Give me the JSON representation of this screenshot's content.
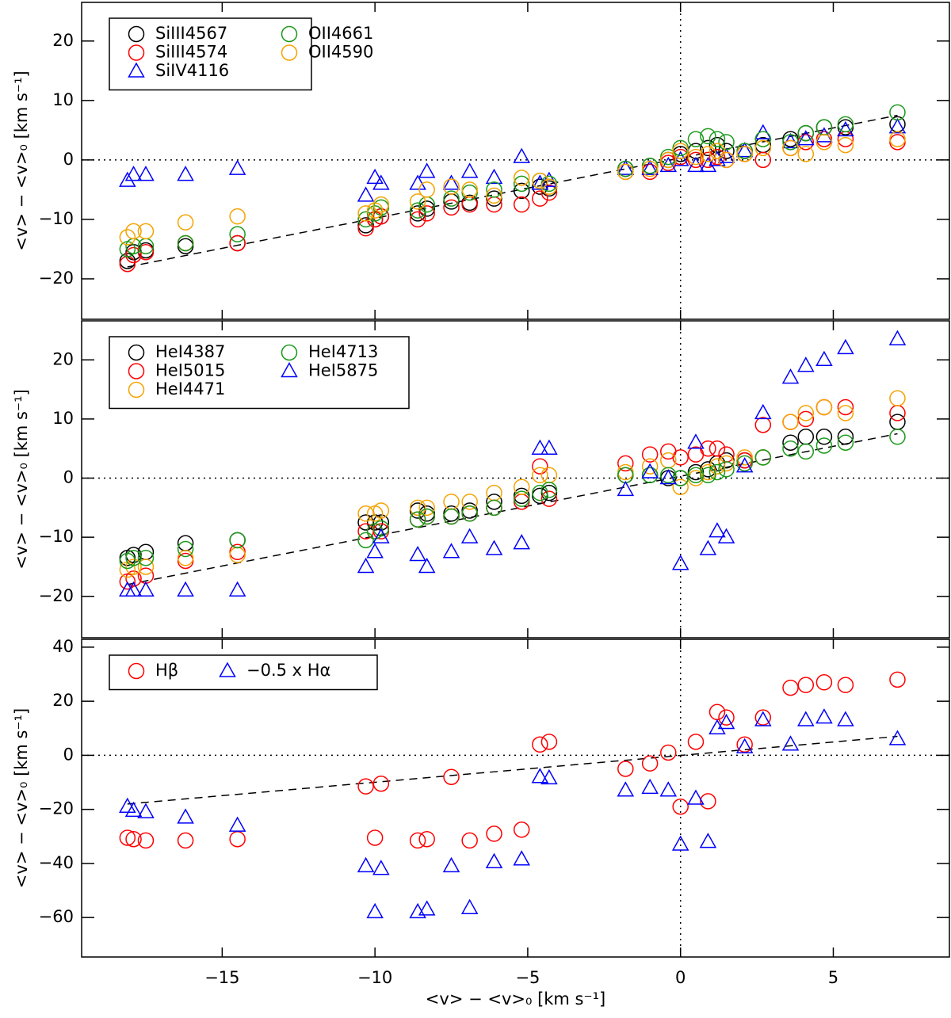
{
  "chart_data": [
    {
      "type": "scatter",
      "x": [
        -18.1,
        -17.9,
        -17.5,
        -16.2,
        -14.5,
        -10.3,
        -10.0,
        -9.8,
        -8.6,
        -8.3,
        -7.5,
        -6.9,
        -6.1,
        -5.2,
        -4.6,
        -4.3,
        -1.8,
        -1.0,
        -0.4,
        0.0,
        0.5,
        0.9,
        1.2,
        1.5,
        2.1,
        2.7,
        3.6,
        4.1,
        4.7,
        5.4,
        7.1
      ],
      "series": [
        {
          "name": "SiIII4567",
          "color": "#000000",
          "marker": "circle",
          "values": [
            -17,
            -15.5,
            -15.2,
            -14.5,
            -14,
            -11,
            -10,
            -9.5,
            -9,
            -8.2,
            -7,
            -7.2,
            -6.5,
            -5.2,
            -4.5,
            -4.8,
            -1.5,
            -1,
            0,
            1,
            1.5,
            2,
            2.5,
            1.5,
            1.5,
            2.5,
            3.5,
            4.5,
            5.5,
            5.5,
            6
          ]
        },
        {
          "name": "SiIII4574",
          "color": "#ff0000",
          "marker": "circle",
          "values": [
            -17.5,
            -16,
            -15.5,
            -14,
            -14,
            -11.5,
            -10,
            -9.5,
            -10,
            -9,
            -8,
            -7.5,
            -7.5,
            -7.5,
            -6.5,
            -5.5,
            -2,
            -2,
            -0.5,
            0.5,
            0,
            0,
            0.5,
            0,
            1,
            0,
            2,
            3,
            3.5,
            3.5,
            3
          ]
        },
        {
          "name": "SiIV4116",
          "color": "#0000ff",
          "marker": "triangle",
          "values": [
            -3.5,
            -2.5,
            -2.5,
            -2.5,
            -1.5,
            -6,
            -3,
            -4,
            -4,
            -2,
            -4,
            -2,
            -3,
            0.5,
            -4,
            -3.5,
            -1.5,
            -1.5,
            -1,
            0,
            -1,
            -1,
            0,
            0.5,
            1.5,
            4.5,
            3,
            3.5,
            4,
            5,
            5.5
          ]
        },
        {
          "name": "OII4661",
          "color": "#1a9a1a",
          "marker": "circle",
          "values": [
            -15,
            -14.5,
            -14.5,
            -14,
            -12.5,
            -10,
            -9,
            -8,
            -8.5,
            -7.5,
            -6.5,
            -5.5,
            -5,
            -4,
            -3.5,
            -4,
            -1.5,
            -1,
            0.5,
            2,
            3.5,
            4,
            3.5,
            3,
            1.5,
            3.5,
            3,
            4.5,
            5.5,
            6,
            8
          ]
        },
        {
          "name": "OII4590",
          "color": "#f5a300",
          "marker": "circle",
          "values": [
            -13,
            -12,
            -12,
            -10.5,
            -9.5,
            -9,
            -8.5,
            -7.5,
            -7,
            -5,
            -4.5,
            -5,
            -6,
            -3,
            -3.5,
            -4.5,
            -2,
            -1.5,
            0,
            1.5,
            0.5,
            1,
            1.5,
            0,
            1,
            2,
            2,
            1,
            3,
            2.5,
            3.5
          ]
        }
      ],
      "reference_line": {
        "x": [
          -18.1,
          7.1
        ],
        "y": [
          -18,
          7.5
        ]
      },
      "zero_lines": true,
      "y_label": "<v> − <v>₀ [km s⁻¹]",
      "xlim": [
        -19.6,
        8.8
      ],
      "xticks": [
        -15,
        -10,
        -5,
        0,
        5
      ],
      "ylim": [
        -26.8,
        26.5
      ],
      "yticks": [
        {
          "value": -20,
          "label": "−20"
        },
        {
          "value": -10,
          "label": "−10"
        },
        0,
        10,
        20
      ]
    },
    {
      "type": "scatter",
      "x": [
        -18.1,
        -17.9,
        -17.5,
        -16.2,
        -14.5,
        -10.3,
        -10.0,
        -9.8,
        -8.6,
        -8.3,
        -7.5,
        -6.9,
        -6.1,
        -5.2,
        -4.6,
        -4.3,
        -1.8,
        -1.0,
        -0.4,
        0.0,
        0.5,
        0.9,
        1.2,
        1.5,
        2.1,
        2.7,
        3.6,
        4.1,
        4.7,
        5.4,
        7.1
      ],
      "series": [
        {
          "name": "HeI4387",
          "color": "#000000",
          "marker": "circle",
          "values": [
            -13.5,
            -13,
            -12.5,
            -11,
            -10.5,
            -7.5,
            -7.5,
            -7.5,
            -5.5,
            -6,
            -6,
            -5.5,
            -4,
            -3,
            -3,
            -2.5,
            0.5,
            0.5,
            0,
            0,
            1,
            1.5,
            2.5,
            3,
            3,
            3.5,
            6,
            7,
            7,
            7,
            9.5
          ]
        },
        {
          "name": "HeI5015",
          "color": "#ff0000",
          "marker": "circle",
          "values": [
            -17.5,
            -17,
            -16.5,
            -14,
            -12.5,
            -9,
            -9,
            -9,
            -7,
            -6.5,
            -6.5,
            -6,
            -5,
            -4,
            2,
            -3.5,
            2.5,
            4,
            4.5,
            3.5,
            4,
            5,
            5,
            4,
            3,
            9,
            9.5,
            10,
            12,
            12,
            11
          ]
        },
        {
          "name": "HeI4471",
          "color": "#f5a300",
          "marker": "circle",
          "values": [
            -15.5,
            -15,
            -15,
            -13.5,
            -13,
            -6,
            -6,
            -5.5,
            -5,
            -5,
            -4,
            -4,
            -2.5,
            -1.5,
            0.5,
            0.5,
            1,
            2,
            3,
            -1.5,
            0,
            1,
            2,
            2.5,
            3.5,
            3.5,
            9.5,
            11,
            12,
            11,
            13.5
          ]
        },
        {
          "name": "HeI4713",
          "color": "#1a9a1a",
          "marker": "circle",
          "values": [
            -14,
            -13.5,
            -13.5,
            -12,
            -10.5,
            -10.5,
            -9,
            -8.5,
            -7,
            -6.5,
            -6.5,
            -6,
            -5,
            -3.5,
            -2.5,
            -2,
            0.5,
            0.5,
            0.5,
            0,
            0.5,
            0.5,
            1,
            1.5,
            2.5,
            3.5,
            5,
            4.5,
            5.5,
            6,
            7
          ]
        },
        {
          "name": "HeI5875",
          "color": "#0000ff",
          "marker": "triangle",
          "values": [
            -19,
            -19,
            -19,
            -19,
            -19,
            -15,
            -12.5,
            -10,
            -13,
            -15,
            -12.5,
            -10,
            -12,
            -11,
            5,
            5,
            -2,
            1,
            0,
            -14.5,
            6,
            -12,
            -9,
            -10,
            2,
            11,
            17,
            19,
            20,
            22,
            23.5
          ]
        }
      ],
      "reference_line": {
        "x": [
          -18.1,
          7.1
        ],
        "y": [
          -18,
          7.5
        ]
      },
      "zero_lines": true,
      "y_label": "<v> − <v>₀ [km s⁻¹]",
      "xlim": [
        -19.6,
        8.8
      ],
      "xticks": [
        -15,
        -10,
        -5,
        0,
        5
      ],
      "ylim": [
        -27,
        26.6
      ],
      "yticks": [
        {
          "value": -20,
          "label": "−20"
        },
        {
          "value": -10,
          "label": "−10"
        },
        0,
        10,
        20
      ]
    },
    {
      "type": "scatter",
      "x": [
        -18.1,
        -17.9,
        -17.5,
        -16.2,
        -14.5,
        -10.3,
        -10.0,
        -9.8,
        -8.6,
        -8.3,
        -7.5,
        -6.9,
        -6.1,
        -5.2,
        -4.6,
        -4.3,
        -1.8,
        -1.0,
        -0.4,
        0.0,
        0.5,
        0.9,
        1.2,
        1.5,
        2.1,
        2.7,
        3.6,
        4.1,
        4.7,
        5.4,
        7.1
      ],
      "series": [
        {
          "name": "Hβ",
          "color": "#ff0000",
          "marker": "circle",
          "values": [
            -30.5,
            -31,
            -31.5,
            -31.5,
            -31,
            -11.5,
            -30.5,
            -10.5,
            -31.5,
            -31,
            -8,
            -31.5,
            -29,
            -27.5,
            4,
            5,
            -5,
            -3,
            1,
            -19,
            5,
            -17,
            16,
            14,
            4,
            14,
            25,
            26,
            27,
            26,
            28
          ]
        },
        {
          "name": "−0.5 x Hα",
          "color": "#0000ff",
          "marker": "triangle",
          "values": [
            -19,
            -20.5,
            -21,
            -23,
            -26,
            -41,
            -58,
            -42,
            -58,
            -57,
            -41,
            -56.5,
            -39.5,
            -38.5,
            -8,
            -8.5,
            -13,
            -12,
            -13,
            -33,
            -16,
            -32,
            10,
            12,
            3,
            13,
            4,
            13,
            14,
            13,
            6
          ]
        }
      ],
      "reference_line": {
        "x": [
          -18.1,
          7.1
        ],
        "y": [
          -18,
          7
        ]
      },
      "zero_lines": true,
      "y_label": "<v> − <v>₀ [km s⁻¹]",
      "x_label": "<v> − <v>₀ [km s⁻¹]",
      "xlim": [
        -19.6,
        8.8
      ],
      "xticks": [
        {
          "value": -15,
          "label": "−15"
        },
        {
          "value": -10,
          "label": "−10"
        },
        {
          "value": -5,
          "label": "−5"
        },
        0,
        5
      ],
      "ylim": [
        -74.6,
        42.9
      ],
      "yticks": [
        {
          "value": -60,
          "label": "−60"
        },
        {
          "value": -40,
          "label": "−40"
        },
        {
          "value": -20,
          "label": "−20"
        },
        0,
        20,
        40
      ]
    }
  ]
}
